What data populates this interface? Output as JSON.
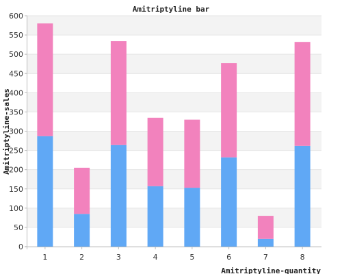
{
  "chart_data": {
    "type": "bar",
    "stacked": true,
    "title": "Amitriptyline bar",
    "xlabel": "Amitriptyline-quantity",
    "ylabel": "Amitriptyline-sales",
    "categories": [
      "1",
      "2",
      "3",
      "4",
      "5",
      "6",
      "7",
      "8"
    ],
    "series": [
      {
        "color": "#60a8f5",
        "values": [
          287,
          85,
          264,
          157,
          153,
          232,
          20,
          262
        ]
      },
      {
        "color": "#f282bd",
        "values": [
          293,
          120,
          270,
          178,
          177,
          245,
          60,
          270
        ]
      }
    ],
    "ylim": [
      0,
      600
    ],
    "yticks": [
      0,
      50,
      100,
      150,
      200,
      250,
      300,
      350,
      400,
      450,
      500,
      550,
      600
    ],
    "grid": true,
    "band_colors": [
      "#ffffff",
      "#f3f3f3"
    ],
    "legend": "none"
  }
}
